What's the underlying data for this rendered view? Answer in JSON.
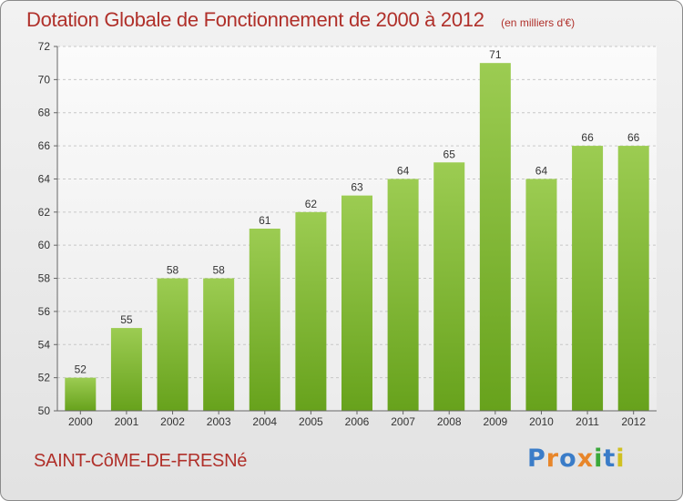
{
  "header": {
    "title": "Dotation Globale de Fonctionnement de 2000 à 2012",
    "unit": "(en milliers d'€)"
  },
  "footer": {
    "commune": "SAINT-CôME-DE-FRESNé",
    "brand_letters": [
      "P",
      "r",
      "o",
      "x",
      "i",
      "t",
      "i"
    ],
    "brand_colors": [
      "#3a7cc8",
      "#e8862a",
      "#3a7cc8",
      "#e8862a",
      "#3aa83a",
      "#3a7cc8",
      "#d0c020"
    ]
  },
  "colors": {
    "bar_top": "#9ccc52",
    "bar_bottom": "#67a21c",
    "title": "#b0302a"
  },
  "chart_data": {
    "type": "bar",
    "title": "Dotation Globale de Fonctionnement de 2000 à 2012",
    "categories": [
      "2000",
      "2001",
      "2002",
      "2003",
      "2004",
      "2005",
      "2006",
      "2007",
      "2008",
      "2009",
      "2010",
      "2011",
      "2012"
    ],
    "values": [
      52,
      55,
      58,
      58,
      61,
      62,
      63,
      64,
      65,
      71,
      64,
      66,
      66
    ],
    "ylim": [
      50,
      72
    ],
    "yticks": [
      50,
      52,
      54,
      56,
      58,
      60,
      62,
      64,
      66,
      68,
      70,
      72
    ],
    "grid": true,
    "data_labels": true
  }
}
